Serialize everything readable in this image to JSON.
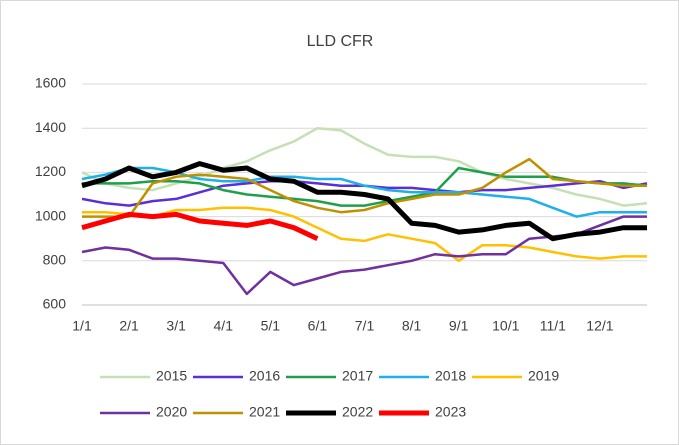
{
  "chart_data": {
    "type": "line",
    "title": "LLD CFR",
    "categories": [
      "1/1",
      null,
      "2/1",
      null,
      "3/1",
      null,
      "4/1",
      null,
      "5/1",
      null,
      "6/1",
      null,
      "7/1",
      null,
      "8/1",
      null,
      "9/1",
      null,
      "10/1",
      null,
      "11/1",
      null,
      "12/1",
      null,
      null
    ],
    "ylim": [
      600,
      1600
    ],
    "yticks": [
      600,
      800,
      1000,
      1200,
      1400,
      1600
    ],
    "grid": true,
    "legend": "bottom",
    "series": [
      {
        "name": "2015",
        "color": "#c5e0b4",
        "width": 2.5,
        "values": [
          1200,
          1150,
          1130,
          1120,
          1150,
          1180,
          1220,
          1250,
          1300,
          1340,
          1400,
          1390,
          1330,
          1280,
          1270,
          1270,
          1250,
          1200,
          1170,
          1150,
          1130,
          1100,
          1080,
          1050,
          1060
        ]
      },
      {
        "name": "2016",
        "color": "#5b2fd6",
        "width": 2.5,
        "values": [
          1080,
          1060,
          1050,
          1070,
          1080,
          1110,
          1140,
          1150,
          1160,
          1160,
          1150,
          1140,
          1140,
          1130,
          1130,
          1120,
          1110,
          1120,
          1120,
          1130,
          1140,
          1150,
          1160,
          1130,
          1150
        ]
      },
      {
        "name": "2017",
        "color": "#1ea04a",
        "width": 2.5,
        "values": [
          1150,
          1150,
          1150,
          1160,
          1160,
          1150,
          1120,
          1100,
          1090,
          1080,
          1070,
          1050,
          1050,
          1070,
          1090,
          1110,
          1220,
          1200,
          1180,
          1180,
          1180,
          1160,
          1150,
          1150,
          1140
        ]
      },
      {
        "name": "2018",
        "color": "#1fb0ea",
        "width": 2.5,
        "values": [
          1170,
          1190,
          1220,
          1220,
          1200,
          1170,
          1160,
          1160,
          1180,
          1180,
          1170,
          1170,
          1140,
          1120,
          1110,
          1110,
          1110,
          1100,
          1090,
          1080,
          1040,
          1000,
          1020,
          1020,
          1020
        ]
      },
      {
        "name": "2019",
        "color": "#ffc000",
        "width": 2.5,
        "values": [
          1020,
          1020,
          1010,
          1000,
          1030,
          1030,
          1040,
          1040,
          1030,
          1000,
          950,
          900,
          890,
          920,
          900,
          880,
          800,
          870,
          870,
          860,
          840,
          820,
          810,
          820,
          820
        ]
      },
      {
        "name": "2020",
        "color": "#7030a0",
        "width": 2.5,
        "values": [
          840,
          860,
          850,
          810,
          810,
          800,
          790,
          650,
          750,
          690,
          720,
          750,
          760,
          780,
          800,
          830,
          820,
          830,
          830,
          900,
          910,
          920,
          960,
          1000,
          1000
        ]
      },
      {
        "name": "2021",
        "color": "#bf9000",
        "width": 2.5,
        "values": [
          1000,
          1000,
          1000,
          1150,
          1180,
          1190,
          1180,
          1170,
          1120,
          1070,
          1040,
          1020,
          1030,
          1060,
          1080,
          1100,
          1100,
          1130,
          1200,
          1260,
          1170,
          1160,
          1150,
          1140,
          1140
        ]
      },
      {
        "name": "2022",
        "color": "#000000",
        "width": 5,
        "values": [
          1140,
          1170,
          1220,
          1180,
          1200,
          1240,
          1210,
          1220,
          1170,
          1160,
          1110,
          1110,
          1100,
          1080,
          970,
          960,
          930,
          940,
          960,
          970,
          900,
          920,
          930,
          950,
          950
        ]
      },
      {
        "name": "2023",
        "color": "#ff0000",
        "width": 5,
        "values": [
          950,
          980,
          1010,
          1000,
          1010,
          980,
          970,
          960,
          980,
          950,
          900,
          null,
          null,
          null,
          null,
          null,
          null,
          null,
          null,
          null,
          null,
          null,
          null,
          null,
          null
        ]
      }
    ]
  }
}
